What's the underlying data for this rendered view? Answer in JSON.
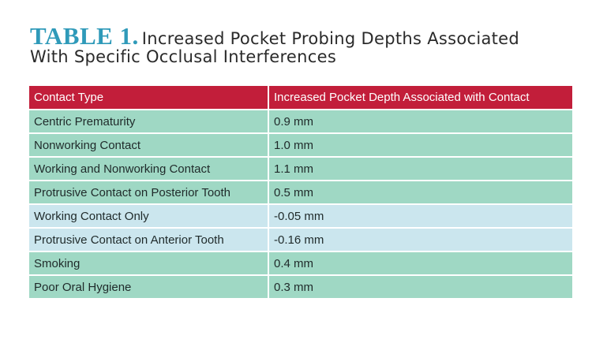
{
  "title": {
    "label": "TABLE 1.",
    "text_line1": "Increased Pocket Probing Depths Associated",
    "text_line2": "With Specific Occlusal Interferences"
  },
  "colors": {
    "title_label": "#2f9ab9",
    "header_bg": "#c21e3a",
    "row_green": "#9fd8c4",
    "row_blue": "#cbe6ee"
  },
  "table": {
    "headers": [
      "Contact Type",
      "Increased Pocket Depth Associated with Contact"
    ],
    "rows": [
      {
        "contact": "Centric Prematurity",
        "depth": "0.9 mm",
        "shade": "green"
      },
      {
        "contact": "Nonworking Contact",
        "depth": "1.0 mm",
        "shade": "green"
      },
      {
        "contact": "Working and Nonworking Contact",
        "depth": "1.1 mm",
        "shade": "green"
      },
      {
        "contact": "Protrusive Contact on Posterior Tooth",
        "depth": "0.5 mm",
        "shade": "green"
      },
      {
        "contact": "Working Contact Only",
        "depth": "-0.05 mm",
        "shade": "blue"
      },
      {
        "contact": "Protrusive Contact on Anterior Tooth",
        "depth": "-0.16 mm",
        "shade": "blue"
      },
      {
        "contact": "Smoking",
        "depth": "0.4 mm",
        "shade": "green"
      },
      {
        "contact": "Poor Oral Hygiene",
        "depth": "0.3 mm",
        "shade": "green"
      }
    ]
  }
}
